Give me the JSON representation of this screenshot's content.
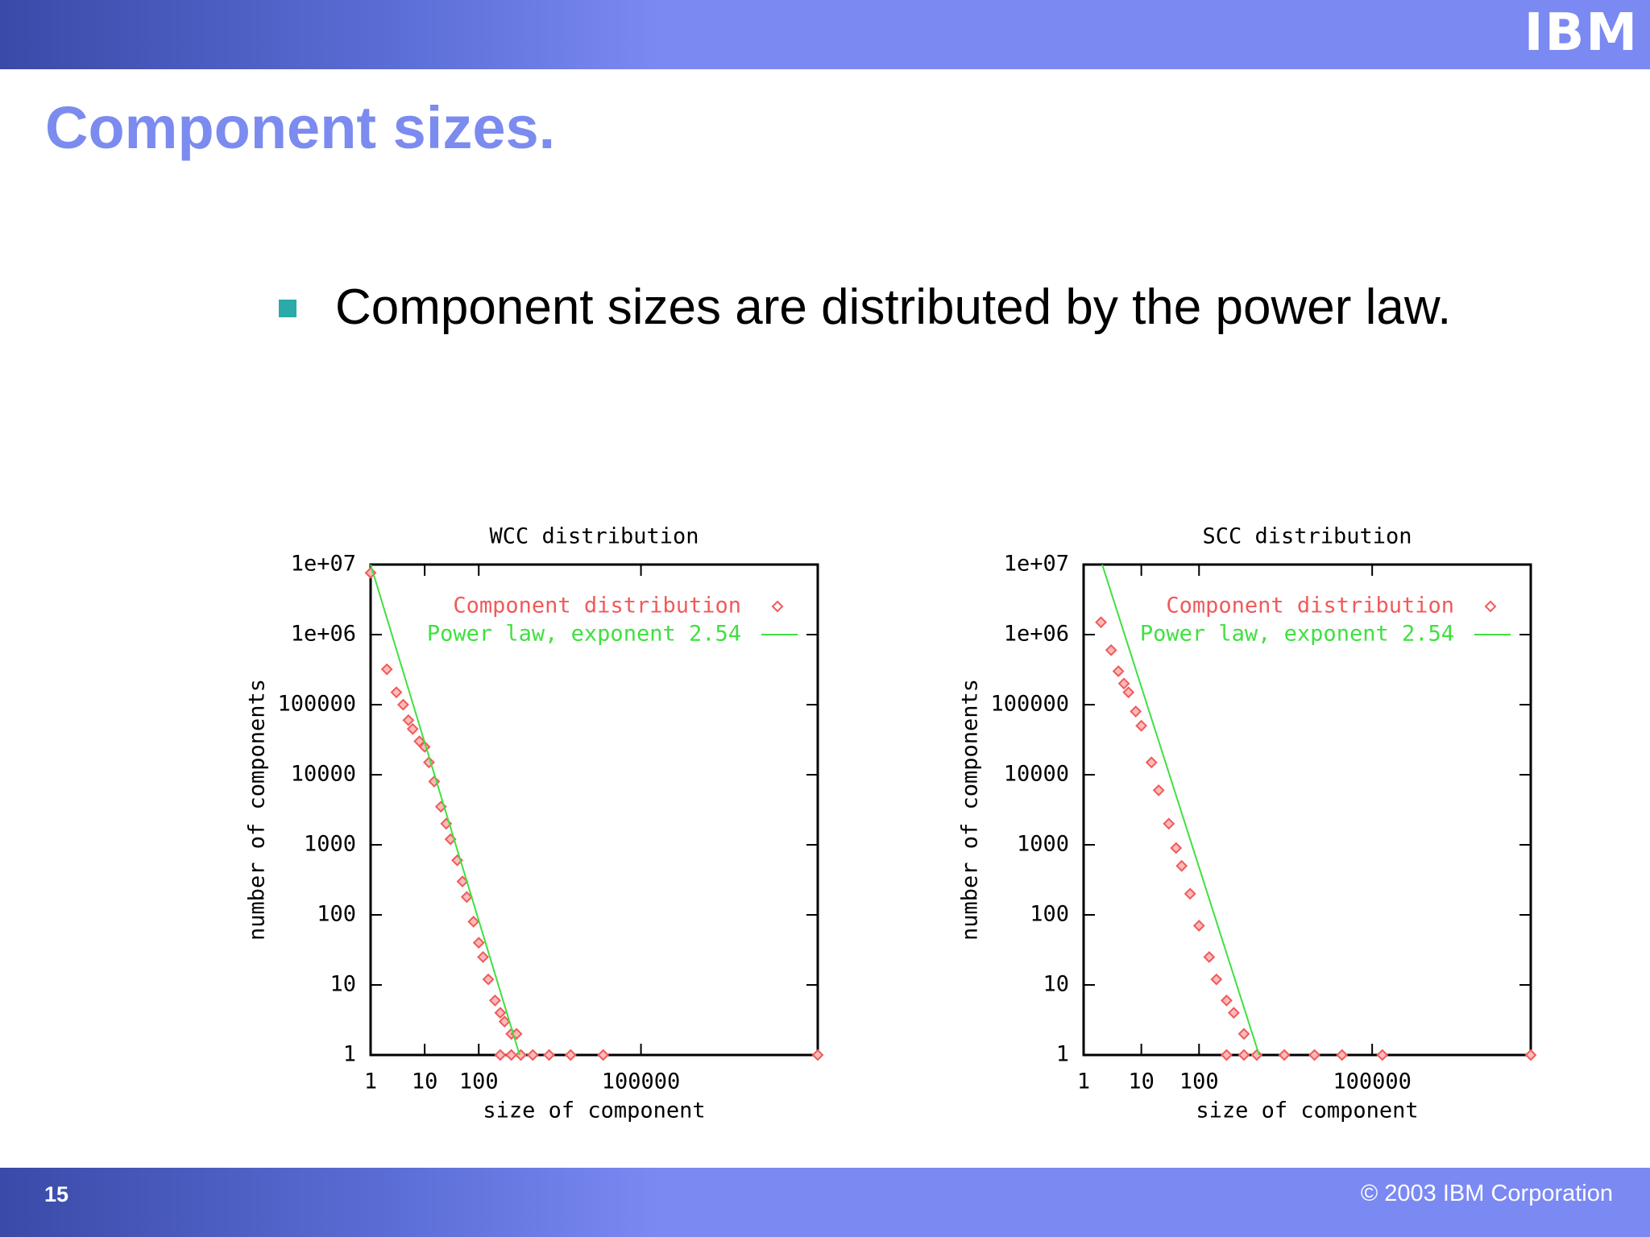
{
  "header": {
    "logo": "IBM",
    "title": "Component sizes."
  },
  "bullet": "Component sizes are distributed by the power law.",
  "footer": {
    "page": "15",
    "copyright": "© 2003 IBM Corporation"
  },
  "chart_data": [
    {
      "type": "scatter",
      "title": "WCC distribution",
      "xlabel": "size of component",
      "ylabel": "number of components",
      "xscale": "log",
      "yscale": "log",
      "xlim": [
        1,
        186000000
      ],
      "ylim": [
        1,
        10000000
      ],
      "xticks": [
        1,
        10,
        100,
        100000
      ],
      "yticks": [
        1,
        10,
        100,
        1000,
        10000,
        100000,
        {
          "value": 1000000,
          "label": "1e+06"
        },
        {
          "value": 10000000,
          "label": "1e+07"
        }
      ],
      "legend": "top-right",
      "series": [
        {
          "name": "Component distribution",
          "color": "#f05a5a",
          "marker": "diamond",
          "x": [
            1,
            2,
            3,
            4,
            5,
            6,
            8,
            10,
            12,
            15,
            20,
            25,
            30,
            40,
            50,
            60,
            80,
            100,
            120,
            150,
            200,
            250,
            300,
            400,
            500,
            250,
            400,
            600,
            1000,
            2000,
            5000,
            20000,
            186000000
          ],
          "values": [
            7600000,
            320000,
            150000,
            100000,
            60000,
            45000,
            30000,
            25000,
            15000,
            8000,
            3500,
            2000,
            1200,
            600,
            300,
            180,
            80,
            40,
            25,
            12,
            6,
            4,
            3,
            2,
            2,
            1,
            1,
            1,
            1,
            1,
            1,
            1,
            1
          ]
        },
        {
          "name": "Power law, exponent 2.54",
          "color": "#40e040",
          "marker": "line",
          "x": [
            1,
            570
          ],
          "values": [
            10000000,
            1
          ]
        }
      ]
    },
    {
      "type": "scatter",
      "title": "SCC distribution",
      "xlabel": "size of component",
      "ylabel": "number of components",
      "xscale": "log",
      "yscale": "log",
      "xlim": [
        1,
        56000000
      ],
      "ylim": [
        1,
        10000000
      ],
      "xticks": [
        1,
        10,
        100,
        100000
      ],
      "yticks": [
        1,
        10,
        100,
        1000,
        10000,
        100000,
        {
          "value": 1000000,
          "label": "1e+06"
        },
        {
          "value": 10000000,
          "label": "1e+07"
        }
      ],
      "legend": "top-right",
      "series": [
        {
          "name": "Component distribution",
          "color": "#f05a5a",
          "marker": "diamond",
          "x": [
            2,
            3,
            4,
            5,
            6,
            8,
            10,
            15,
            20,
            30,
            40,
            50,
            70,
            100,
            150,
            200,
            300,
            400,
            600,
            300,
            600,
            1000,
            3000,
            10000,
            30000,
            150000,
            56000000
          ],
          "values": [
            1500000,
            600000,
            300000,
            200000,
            150000,
            80000,
            50000,
            15000,
            6000,
            2000,
            900,
            500,
            200,
            70,
            25,
            12,
            6,
            4,
            2,
            1,
            1,
            1,
            1,
            1,
            1,
            1,
            1
          ]
        },
        {
          "name": "Power law, exponent 2.54",
          "color": "#40e040",
          "marker": "line",
          "x": [
            2.1,
            1100
          ],
          "values": [
            10000000,
            1
          ]
        }
      ]
    }
  ]
}
